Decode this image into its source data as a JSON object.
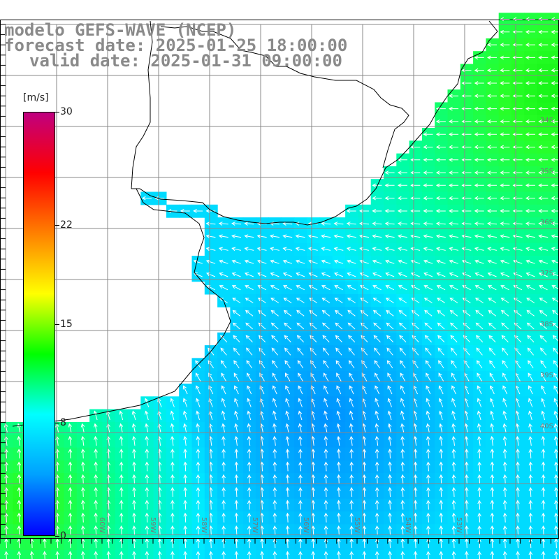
{
  "title": {
    "line1": "modelo GEFS-WAVE (NCEP)",
    "line2": "forecast date: 2025-01-25 18:00:00",
    "line3": "valid date: 2025-01-31 09:00:00"
  },
  "colorbar": {
    "unit": "[m/s]",
    "ticks": [
      {
        "label": "30",
        "value": 30
      },
      {
        "label": "22",
        "value": 22
      },
      {
        "label": "15",
        "value": 15
      },
      {
        "label": "8",
        "value": 8
      },
      {
        "label": "0",
        "value": 0
      }
    ],
    "range": [
      0,
      30
    ],
    "colors": [
      "#0000ff",
      "#00a0ff",
      "#00ffff",
      "#00ff00",
      "#ffff00",
      "#ff8000",
      "#ff0000",
      "#c00080"
    ]
  },
  "map": {
    "lat_labels": [
      "34S",
      "35S",
      "36S",
      "37S",
      "38S",
      "39S",
      "40S"
    ],
    "lon_labels": [
      "61W",
      "60W",
      "59W",
      "58W",
      "57W",
      "56W",
      "55W",
      "54W",
      "53W"
    ],
    "lon_range": [
      -61.5,
      -52.5
    ],
    "lat_range": [
      -41.0,
      -31.0
    ],
    "land_color": "#ffffff",
    "grid_color": "#888888",
    "arrow_color": "#ffffff"
  }
}
